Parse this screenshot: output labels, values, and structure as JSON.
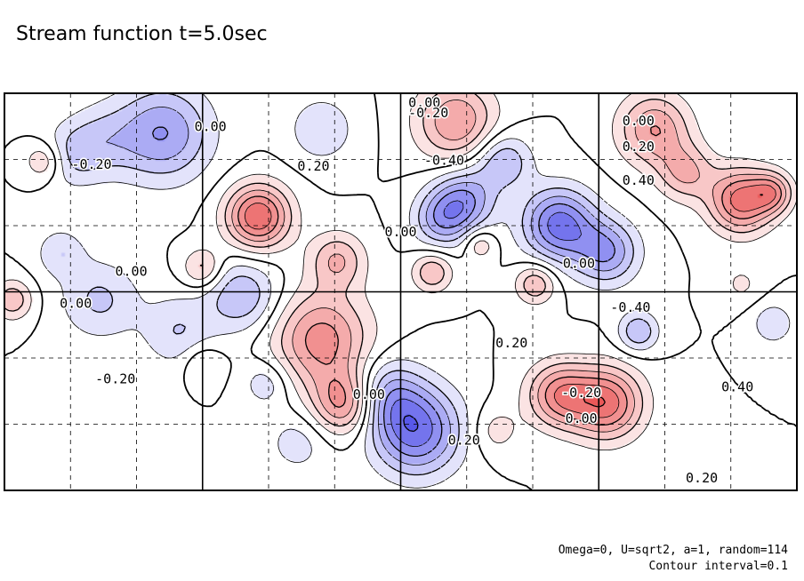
{
  "title": "Stream function t=5.0sec",
  "footer": {
    "params": "Omega=0, U=sqrt2, a=1, random=114",
    "interval": "Contour interval=0.1"
  },
  "colors": {
    "positive": "#e8413f",
    "negative": "#3b3be6",
    "contour": "#000000",
    "grid": "#000000"
  },
  "chart_data": {
    "type": "contour",
    "title": "Stream function t=5.0sec",
    "contour_interval": 0.1,
    "grid": true,
    "features": [
      {
        "kind": "max",
        "x": 0.05,
        "y": 0.17,
        "amp": 0.25,
        "r": 0.05
      },
      {
        "kind": "min",
        "x": 0.07,
        "y": 0.4,
        "amp": -0.18,
        "r": 0.06
      },
      {
        "kind": "min",
        "x": 0.12,
        "y": 0.52,
        "amp": -0.22,
        "r": 0.1
      },
      {
        "kind": "min",
        "x": 0.3,
        "y": 0.51,
        "amp": -0.3,
        "r": 0.09
      },
      {
        "kind": "min",
        "x": 0.22,
        "y": 0.6,
        "amp": -0.2,
        "r": 0.09
      },
      {
        "kind": "max",
        "x": 0.32,
        "y": 0.31,
        "amp": 0.6,
        "r": 0.08
      },
      {
        "kind": "max",
        "x": 0.25,
        "y": 0.44,
        "amp": 0.25,
        "r": 0.05
      },
      {
        "kind": "max",
        "x": 0.01,
        "y": 0.52,
        "amp": 0.28,
        "r": 0.05
      },
      {
        "kind": "min",
        "x": 0.08,
        "y": 0.16,
        "amp": -0.18,
        "r": 0.08
      },
      {
        "kind": "min",
        "x": 0.12,
        "y": 0.12,
        "amp": -0.18,
        "r": 0.09
      },
      {
        "kind": "min",
        "x": 0.2,
        "y": 0.1,
        "amp": -0.4,
        "r": 0.12
      },
      {
        "kind": "min",
        "x": 0.4,
        "y": 0.09,
        "amp": -0.2,
        "r": 0.08
      },
      {
        "kind": "max",
        "x": 0.4,
        "y": 0.62,
        "amp": 0.45,
        "r": 0.12
      },
      {
        "kind": "max",
        "x": 0.43,
        "y": 0.78,
        "amp": 0.45,
        "r": 0.08
      },
      {
        "kind": "max",
        "x": 0.42,
        "y": 0.42,
        "amp": 0.3,
        "r": 0.07
      },
      {
        "kind": "max",
        "x": 0.25,
        "y": 0.68,
        "amp": 0.15,
        "r": 0.05
      },
      {
        "kind": "min",
        "x": 0.52,
        "y": 0.85,
        "amp": -0.55,
        "r": 0.11
      },
      {
        "kind": "min",
        "x": 0.48,
        "y": 0.76,
        "amp": -0.3,
        "r": 0.09
      },
      {
        "kind": "min",
        "x": 0.37,
        "y": 0.88,
        "amp": -0.15,
        "r": 0.08
      },
      {
        "kind": "min",
        "x": 0.33,
        "y": 0.73,
        "amp": -0.18,
        "r": 0.06
      },
      {
        "kind": "max",
        "x": 0.54,
        "y": 0.45,
        "amp": 0.3,
        "r": 0.05
      },
      {
        "kind": "max",
        "x": 0.67,
        "y": 0.48,
        "amp": 0.3,
        "r": 0.05
      },
      {
        "kind": "max",
        "x": 0.6,
        "y": 0.38,
        "amp": 0.2,
        "r": 0.04
      },
      {
        "kind": "min",
        "x": 0.58,
        "y": 0.27,
        "amp": -0.4,
        "r": 0.08
      },
      {
        "kind": "min",
        "x": 0.55,
        "y": 0.32,
        "amp": -0.3,
        "r": 0.07
      },
      {
        "kind": "min",
        "x": 0.7,
        "y": 0.33,
        "amp": -0.55,
        "r": 0.09
      },
      {
        "kind": "min",
        "x": 0.76,
        "y": 0.4,
        "amp": -0.4,
        "r": 0.08
      },
      {
        "kind": "min",
        "x": 0.8,
        "y": 0.6,
        "amp": -0.3,
        "r": 0.05
      },
      {
        "kind": "max",
        "x": 0.76,
        "y": 0.78,
        "amp": 0.55,
        "r": 0.09
      },
      {
        "kind": "max",
        "x": 0.7,
        "y": 0.76,
        "amp": 0.45,
        "r": 0.08
      },
      {
        "kind": "max",
        "x": 0.62,
        "y": 0.85,
        "amp": 0.15,
        "r": 0.06
      },
      {
        "kind": "max",
        "x": 0.93,
        "y": 0.27,
        "amp": 0.55,
        "r": 0.08
      },
      {
        "kind": "max",
        "x": 0.97,
        "y": 0.25,
        "amp": 0.35,
        "r": 0.05
      },
      {
        "kind": "max",
        "x": 0.86,
        "y": 0.2,
        "amp": 0.3,
        "r": 0.07
      },
      {
        "kind": "max",
        "x": 0.57,
        "y": 0.07,
        "amp": 0.4,
        "r": 0.1
      },
      {
        "kind": "max",
        "x": 0.82,
        "y": 0.09,
        "amp": 0.4,
        "r": 0.09
      },
      {
        "kind": "min",
        "x": 0.63,
        "y": 0.17,
        "amp": -0.3,
        "r": 0.07
      },
      {
        "kind": "min",
        "x": 0.97,
        "y": 0.58,
        "amp": -0.2,
        "r": 0.05
      },
      {
        "kind": "max",
        "x": 0.93,
        "y": 0.48,
        "amp": 0.12,
        "r": 0.05
      }
    ],
    "labels": [
      {
        "text": "0.00",
        "x": 0.53,
        "y": 0.975
      },
      {
        "text": "-0.20",
        "x": 0.535,
        "y": 0.95
      },
      {
        "text": "-0.40",
        "x": 0.555,
        "y": 0.83
      },
      {
        "text": "0.00",
        "x": 0.26,
        "y": 0.915
      },
      {
        "text": "0.00",
        "x": 0.8,
        "y": 0.93
      },
      {
        "text": "0.20",
        "x": 0.8,
        "y": 0.865
      },
      {
        "text": "0.40",
        "x": 0.8,
        "y": 0.78
      },
      {
        "text": "-0.20",
        "x": 0.11,
        "y": 0.82
      },
      {
        "text": "0.20",
        "x": 0.39,
        "y": 0.815
      },
      {
        "text": "0.00",
        "x": 0.5,
        "y": 0.65
      },
      {
        "text": "0.00",
        "x": 0.16,
        "y": 0.55
      },
      {
        "text": "0.00",
        "x": 0.09,
        "y": 0.47
      },
      {
        "text": "0.00",
        "x": 0.725,
        "y": 0.57
      },
      {
        "text": "-0.40",
        "x": 0.79,
        "y": 0.46
      },
      {
        "text": "0.20",
        "x": 0.64,
        "y": 0.37
      },
      {
        "text": "-0.20",
        "x": 0.728,
        "y": 0.245
      },
      {
        "text": "0.00",
        "x": 0.728,
        "y": 0.18
      },
      {
        "text": "-0.20",
        "x": 0.14,
        "y": 0.28
      },
      {
        "text": "0.20",
        "x": 0.58,
        "y": 0.125
      },
      {
        "text": "0.40",
        "x": 0.925,
        "y": 0.26
      },
      {
        "text": "0.00",
        "x": 0.46,
        "y": 0.24
      },
      {
        "text": "0.20",
        "x": 0.88,
        "y": 0.03
      }
    ]
  }
}
